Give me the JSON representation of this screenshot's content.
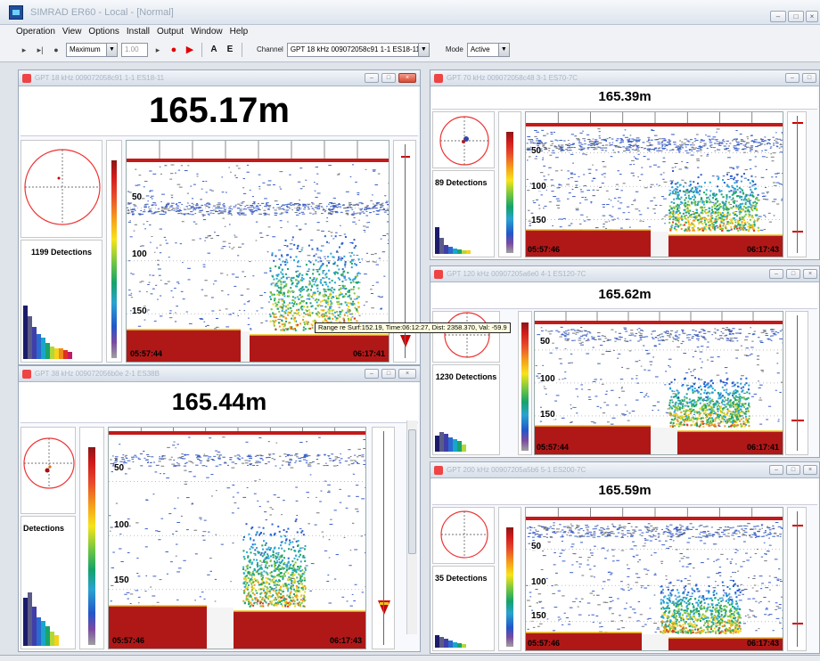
{
  "window": {
    "title": "SIMRAD ER60 - Local - [Normal]"
  },
  "menu": [
    "Operation",
    "View",
    "Options",
    "Install",
    "Output",
    "Window",
    "Help"
  ],
  "toolbar": {
    "ping_mode": "Maximum",
    "interval": "1.00",
    "btn_a": "A",
    "btn_e": "E",
    "channel_label": "Channel",
    "channel_value": "GPT 18 kHz 009072058c91 1-1 ES18-11",
    "mode_label": "Mode",
    "mode_value": "Active"
  },
  "tooltip": "Range re Surf:152.19, Time:06:12:27, Dist: 2358.370, Val: -59.9",
  "panels": [
    {
      "title": "GPT 18 kHz 009072058c91 1-1 ES18-11",
      "depth": "165.17m",
      "detections": "1199 Detections",
      "time_start": "05:57:44",
      "time_end": "06:17:41",
      "ticks": [
        "50",
        "100",
        "150"
      ]
    },
    {
      "title": "GPT 38 kHz 009072056b0e 2-1 ES38B",
      "depth": "165.44m",
      "detections": "Detections",
      "time_start": "05:57:46",
      "time_end": "06:17:43",
      "ticks": [
        "50",
        "100",
        "150"
      ]
    },
    {
      "title": "GPT 70 kHz 009072058c48 3-1 ES70-7C",
      "depth": "165.39m",
      "detections": "89 Detections",
      "time_start": "05:57:46",
      "time_end": "06:17:43",
      "ticks": [
        "50",
        "100",
        "150"
      ]
    },
    {
      "title": "GPT 120 kHz 00907205a6e0 4-1 ES120-7C",
      "depth": "165.62m",
      "detections": "1230 Detections",
      "time_start": "05:57:44",
      "time_end": "06:17:41",
      "ticks": [
        "50",
        "100",
        "150"
      ]
    },
    {
      "title": "GPT 200 kHz 00907205a5b6 5-1 ES200-7C",
      "depth": "165.59m",
      "detections": "35 Detections",
      "time_start": "05:57:46",
      "time_end": "06:17:43",
      "ticks": [
        "50",
        "100",
        "150"
      ]
    }
  ]
}
